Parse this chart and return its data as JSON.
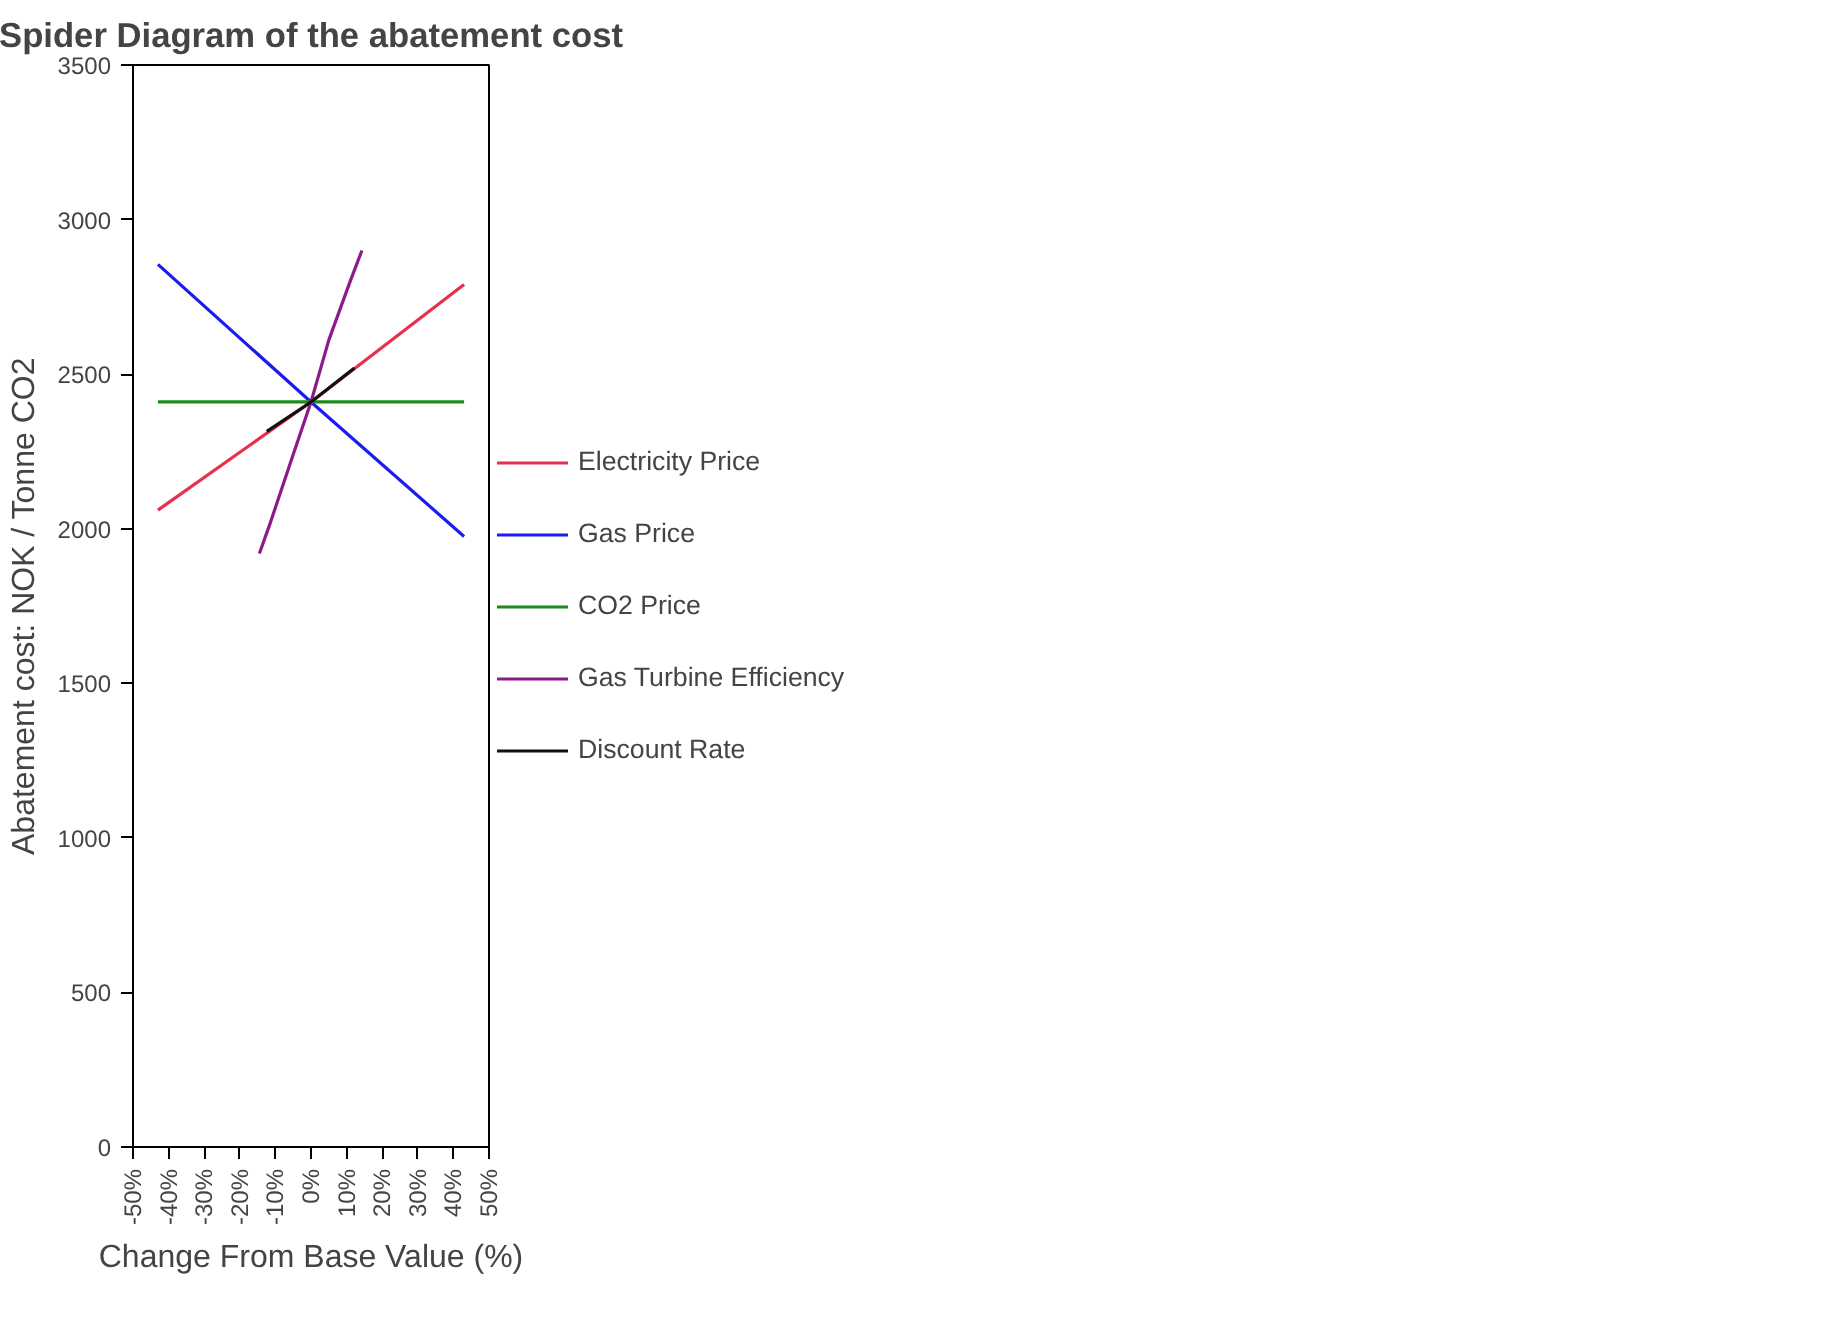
{
  "chart_data": {
    "type": "line",
    "title": "Spider Diagram of the abatement cost",
    "xlabel": "Change From Base Value (%)",
    "ylabel": "Abatement cost: NOK / Tonne CO2",
    "xlim": [
      -50,
      50
    ],
    "xticks": [
      {
        "value": -50,
        "label": "-50%"
      },
      {
        "value": -40,
        "label": "-40%"
      },
      {
        "value": -30,
        "label": "-30%"
      },
      {
        "value": -20,
        "label": "-20%"
      },
      {
        "value": -10,
        "label": "-10%"
      },
      {
        "value": 0,
        "label": "0%"
      },
      {
        "value": 10,
        "label": "10%"
      },
      {
        "value": 20,
        "label": "20%"
      },
      {
        "value": 30,
        "label": "30%"
      },
      {
        "value": 40,
        "label": "40%"
      },
      {
        "value": 50,
        "label": "50%"
      }
    ],
    "ylim": [
      0,
      3500
    ],
    "yticks": [
      0,
      500,
      1000,
      1500,
      2000,
      2500,
      3000,
      3500
    ],
    "grid": false,
    "legend": "right",
    "marker": "none",
    "line_style": "solid",
    "series": [
      {
        "name": "Electricity Price",
        "color": "#e8304e",
        "x": [
          -43,
          0,
          43
        ],
        "values": [
          2060,
          2410,
          2790
        ]
      },
      {
        "name": "Gas Price",
        "color": "#1c1cf0",
        "x": [
          -43,
          0,
          43
        ],
        "values": [
          2855,
          2410,
          1975
        ]
      },
      {
        "name": "CO2 Price",
        "color": "#1a8c1a",
        "x": [
          -43,
          0,
          43
        ],
        "values": [
          2410,
          2410,
          2410
        ]
      },
      {
        "name": "Gas Turbine Efficiency",
        "color": "#8b1a8b",
        "x": [
          -14.5,
          -11.7,
          -5,
          0,
          5,
          11,
          14.3
        ],
        "values": [
          1920,
          2010,
          2240,
          2410,
          2610,
          2800,
          2900
        ]
      },
      {
        "name": "Discount Rate",
        "color": "#111111",
        "x": [
          -12.4,
          0,
          12.2
        ],
        "values": [
          2315,
          2410,
          2520
        ]
      }
    ]
  }
}
